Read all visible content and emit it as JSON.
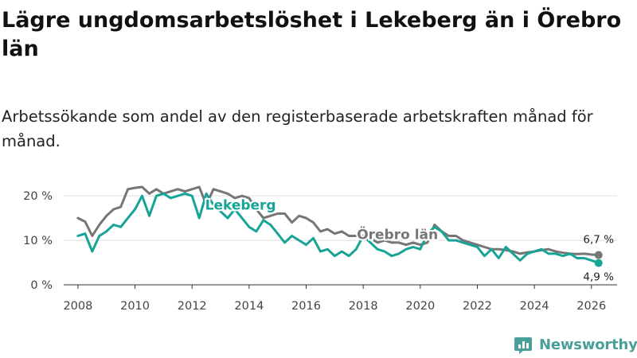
{
  "chart": {
    "title": "Lägre ungdomsarbetslöshet i Lekeberg än i Örebro län",
    "subtitle": "Arbetssökande som andel av den registerbaserade arbetskraften månad för månad."
  },
  "brand": {
    "name": "Newsworthy",
    "color": "#4a9f9a"
  },
  "chart_data": {
    "type": "line",
    "title": "Lägre ungdomsarbetslöshet i Lekeberg än i Örebro län",
    "xlabel": "",
    "ylabel": "",
    "xlim": [
      2007.5,
      2026.9
    ],
    "ylim": [
      0,
      22
    ],
    "y_ticks": [
      0,
      10,
      20
    ],
    "y_tick_labels": [
      "0 %",
      "10 %",
      "20 %"
    ],
    "x_ticks": [
      2008,
      2010,
      2012,
      2014,
      2016,
      2018,
      2020,
      2022,
      2024,
      2026
    ],
    "x_tick_labels": [
      "2008",
      "2010",
      "2012",
      "2014",
      "2016",
      "2018",
      "2020",
      "2022",
      "2024",
      "2026"
    ],
    "grid": true,
    "series": [
      {
        "name": "Örebro län",
        "color": "#767676",
        "end_label": "6,7 %",
        "x": [
          2008.0,
          2008.25,
          2008.5,
          2008.75,
          2009.0,
          2009.25,
          2009.5,
          2009.75,
          2010.0,
          2010.25,
          2010.5,
          2010.75,
          2011.0,
          2011.25,
          2011.5,
          2011.75,
          2012.0,
          2012.25,
          2012.5,
          2012.75,
          2013.0,
          2013.25,
          2013.5,
          2013.75,
          2014.0,
          2014.25,
          2014.5,
          2014.75,
          2015.0,
          2015.25,
          2015.5,
          2015.75,
          2016.0,
          2016.25,
          2016.5,
          2016.75,
          2017.0,
          2017.25,
          2017.5,
          2017.75,
          2018.0,
          2018.25,
          2018.5,
          2018.75,
          2019.0,
          2019.25,
          2019.5,
          2019.75,
          2020.0,
          2020.25,
          2020.5,
          2020.75,
          2021.0,
          2021.25,
          2021.5,
          2021.75,
          2022.0,
          2022.25,
          2022.5,
          2022.75,
          2023.0,
          2023.25,
          2023.5,
          2023.75,
          2024.0,
          2024.25,
          2024.5,
          2024.75,
          2025.0,
          2025.25,
          2025.5,
          2025.75,
          2026.0,
          2026.25
        ],
        "values": [
          15.0,
          14.2,
          11.0,
          13.5,
          15.5,
          17.0,
          17.5,
          21.5,
          21.8,
          22.0,
          20.5,
          21.5,
          20.5,
          21.0,
          21.5,
          21.0,
          21.5,
          22.0,
          18.0,
          21.5,
          21.0,
          20.5,
          19.5,
          20.0,
          19.5,
          17.0,
          15.0,
          15.5,
          16.0,
          16.0,
          14.0,
          15.5,
          15.0,
          14.0,
          12.0,
          12.5,
          11.5,
          12.0,
          11.0,
          11.0,
          10.5,
          10.5,
          9.5,
          10.0,
          9.5,
          9.5,
          9.0,
          9.5,
          9.0,
          9.5,
          13.5,
          12.0,
          11.0,
          11.0,
          10.0,
          9.5,
          9.0,
          8.5,
          8.0,
          8.0,
          7.8,
          7.5,
          7.0,
          7.3,
          7.5,
          7.8,
          8.0,
          7.5,
          7.2,
          7.0,
          6.9,
          7.0,
          6.8,
          6.7
        ]
      },
      {
        "name": "Lekeberg",
        "color": "#17a497",
        "end_label": "4,9 %",
        "x": [
          2008.0,
          2008.25,
          2008.5,
          2008.75,
          2009.0,
          2009.25,
          2009.5,
          2009.75,
          2010.0,
          2010.25,
          2010.5,
          2010.75,
          2011.0,
          2011.25,
          2011.5,
          2011.75,
          2012.0,
          2012.25,
          2012.5,
          2012.75,
          2013.0,
          2013.25,
          2013.5,
          2013.75,
          2014.0,
          2014.25,
          2014.5,
          2014.75,
          2015.0,
          2015.25,
          2015.5,
          2015.75,
          2016.0,
          2016.25,
          2016.5,
          2016.75,
          2017.0,
          2017.25,
          2017.5,
          2017.75,
          2018.0,
          2018.25,
          2018.5,
          2018.75,
          2019.0,
          2019.25,
          2019.5,
          2019.75,
          2020.0,
          2020.25,
          2020.5,
          2020.75,
          2021.0,
          2021.25,
          2021.5,
          2021.75,
          2022.0,
          2022.25,
          2022.5,
          2022.75,
          2023.0,
          2023.25,
          2023.5,
          2023.75,
          2024.0,
          2024.25,
          2024.5,
          2024.75,
          2025.0,
          2025.25,
          2025.5,
          2025.75,
          2026.0,
          2026.25
        ],
        "values": [
          11.0,
          11.5,
          7.5,
          11.0,
          12.0,
          13.5,
          13.0,
          15.0,
          17.0,
          20.0,
          15.5,
          20.0,
          20.5,
          19.5,
          20.0,
          20.5,
          20.0,
          15.0,
          20.5,
          18.0,
          16.5,
          15.0,
          17.0,
          15.0,
          13.0,
          12.0,
          14.5,
          13.5,
          11.5,
          9.5,
          11.0,
          10.0,
          9.0,
          10.5,
          7.5,
          8.0,
          6.5,
          7.5,
          6.5,
          8.0,
          11.0,
          9.5,
          8.0,
          7.5,
          6.5,
          7.0,
          8.0,
          8.5,
          8.0,
          11.5,
          13.0,
          12.0,
          10.0,
          10.0,
          9.5,
          9.0,
          8.5,
          6.5,
          8.0,
          6.0,
          8.5,
          7.0,
          5.5,
          7.0,
          7.5,
          8.0,
          7.0,
          7.0,
          6.5,
          7.0,
          6.0,
          6.0,
          5.5,
          4.9
        ]
      }
    ],
    "annotations": [
      {
        "text": "Lekeberg",
        "series": "Lekeberg",
        "x": 2013.7,
        "y": 16.9
      },
      {
        "text": "Örebro län",
        "series": "Örebro län",
        "x": 2019.2,
        "y": 10.3
      }
    ]
  }
}
